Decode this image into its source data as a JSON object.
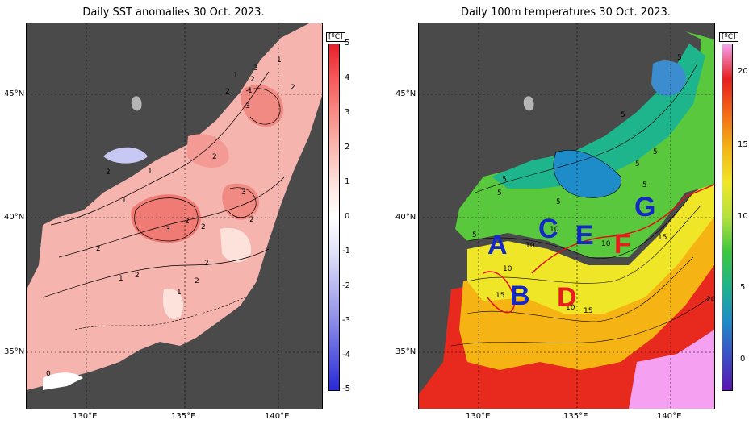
{
  "left_panel": {
    "title": "Daily SST anomalies 30 Oct. 2023.",
    "colorbar": {
      "unit": "[ºC]",
      "ticks": [
        "5",
        "4",
        "3",
        "2",
        "1",
        "0",
        "-1",
        "-2",
        "-3",
        "-4",
        "-5"
      ],
      "colors": [
        "#e8202a",
        "#f55a5a",
        "#f88c86",
        "#fab8b0",
        "#fde2dc",
        "#ffffff",
        "#e2e2f8",
        "#b8b8f0",
        "#8c8ce8",
        "#5a5adf",
        "#2828d6"
      ]
    },
    "lat_labels": [
      "45°N",
      "40°N",
      "35°N"
    ],
    "lon_labels": [
      "130°E",
      "135°E",
      "140°E"
    ],
    "contour_labels": [
      "1",
      "2",
      "3",
      "1",
      "2",
      "2",
      "1",
      "2",
      "3",
      "1",
      "1",
      "2",
      "2",
      "3",
      "2",
      "2",
      "3",
      "2",
      "2",
      "1",
      "2",
      "1",
      "2",
      "0"
    ]
  },
  "right_panel": {
    "title": "Daily 100m temperatures 30 Oct. 2023.",
    "colorbar": {
      "unit": "[ºC]",
      "ticks": [
        "20",
        "15",
        "10",
        "5",
        "0"
      ],
      "colors": [
        "#f5a0f0",
        "#e81e1e",
        "#f56a14",
        "#f5b414",
        "#f0e628",
        "#b4e13c",
        "#3cc83c",
        "#1eb48c",
        "#1e8cc8",
        "#3c50c8",
        "#5a14b4"
      ]
    },
    "lat_labels": [
      "45°N",
      "40°N",
      "35°N"
    ],
    "lon_labels": [
      "130°E",
      "135°E",
      "140°E"
    ],
    "contour_labels": [
      "5",
      "5",
      "5",
      "5",
      "5",
      "5",
      "5",
      "5",
      "5",
      "10",
      "10",
      "10",
      "10",
      "15",
      "15",
      "15",
      "10",
      "20"
    ],
    "regions": [
      {
        "label": "A",
        "color": "#1428c8"
      },
      {
        "label": "B",
        "color": "#1428c8"
      },
      {
        "label": "C",
        "color": "#1428c8"
      },
      {
        "label": "D",
        "color": "#e81e1e"
      },
      {
        "label": "E",
        "color": "#1428c8"
      },
      {
        "label": "F",
        "color": "#e81e1e"
      },
      {
        "label": "G",
        "color": "#1428c8"
      }
    ]
  },
  "colors": {
    "land": "#4a4a4a",
    "coast_gray": "#b4b4b4",
    "front_line": "#e01010"
  }
}
